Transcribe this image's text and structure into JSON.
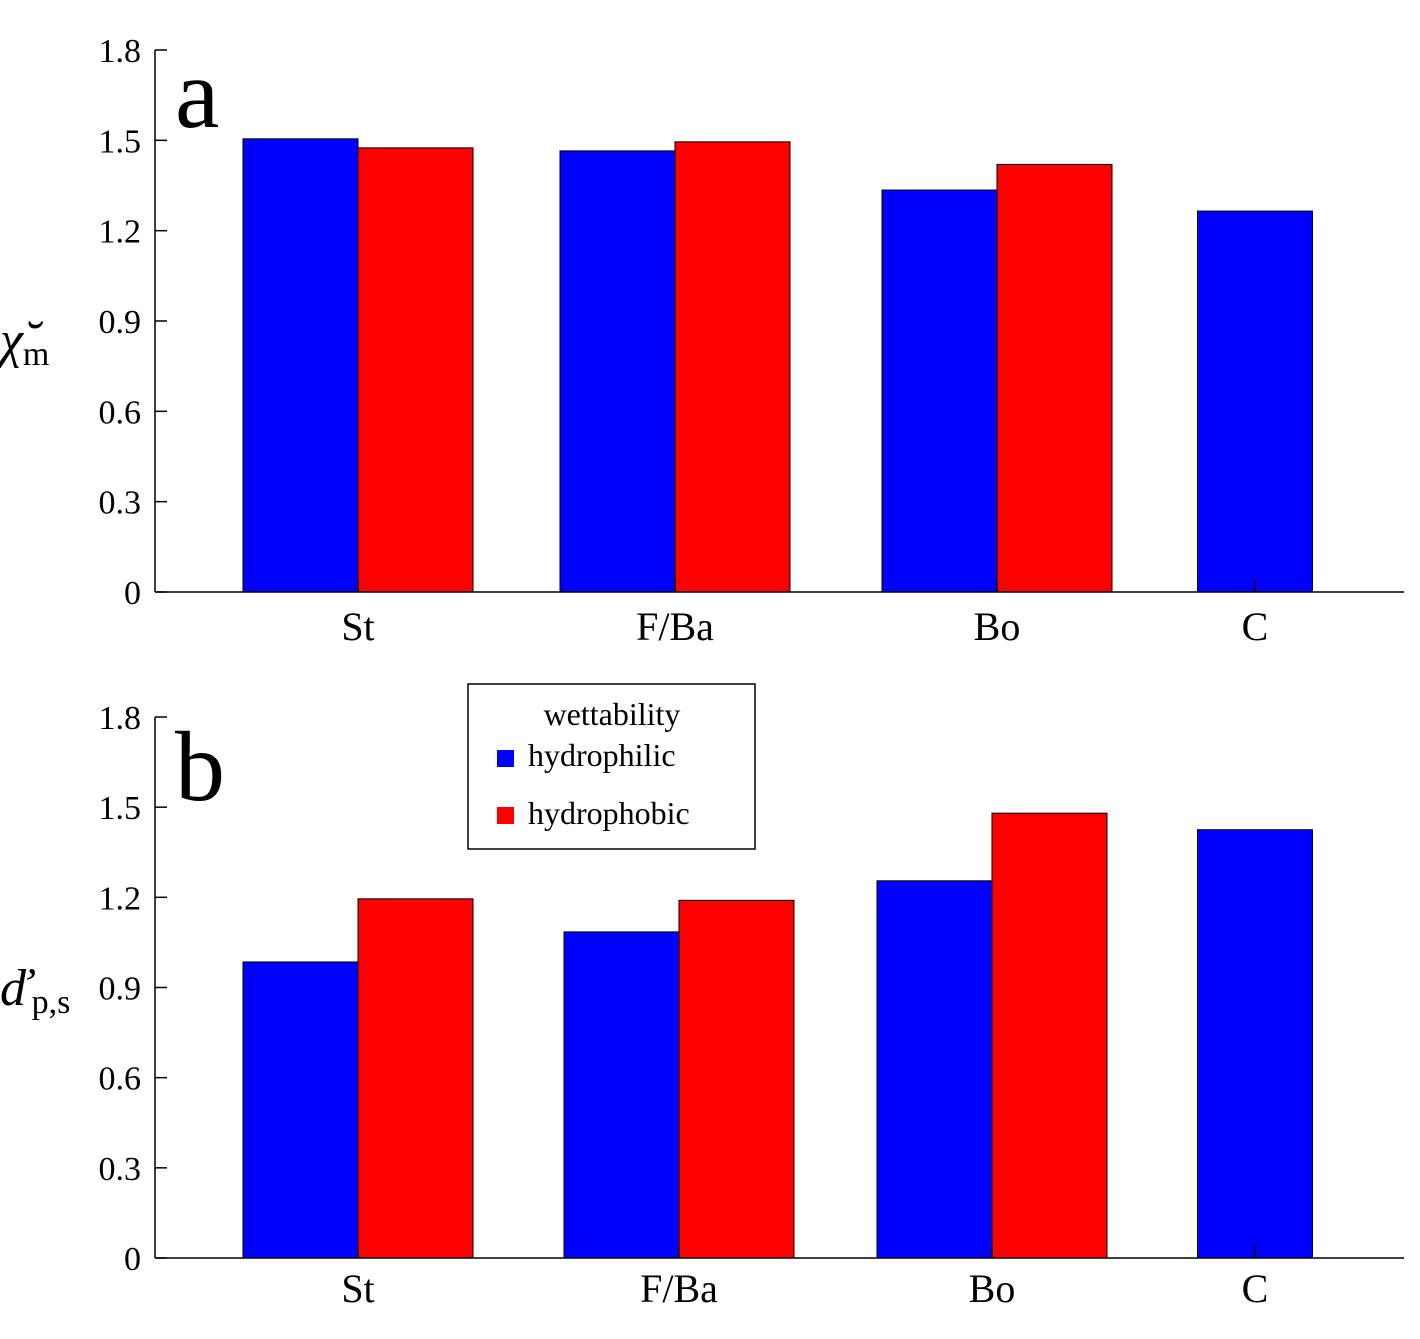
{
  "colors": {
    "hydrophilic": "#0000ff",
    "hydrophobic": "#ff0000",
    "axis": "#000000"
  },
  "chart_data": [
    {
      "type": "bar",
      "panel_label": "a",
      "ylabel_symbol": "χ̆",
      "ylabel_subscript": "m",
      "categories": [
        "St",
        "F/Ba",
        "Bo",
        "C"
      ],
      "series": [
        {
          "name": "hydrophilic",
          "values": [
            1.505,
            1.465,
            1.335,
            1.265
          ]
        },
        {
          "name": "hydrophobic",
          "values": [
            1.475,
            1.495,
            1.42,
            null
          ]
        }
      ],
      "ylim": [
        0,
        1.8
      ],
      "yticks": [
        "0",
        "0.3",
        "0.6",
        "0.9",
        "1.2",
        "1.5",
        "1.8"
      ],
      "grid": false
    },
    {
      "type": "bar",
      "panel_label": "b",
      "ylabel_symbol": "ď",
      "ylabel_subscript": "p,s",
      "categories": [
        "St",
        "F/Ba",
        "Bo",
        "C"
      ],
      "series": [
        {
          "name": "hydrophilic",
          "values": [
            0.985,
            1.085,
            1.255,
            1.425
          ]
        },
        {
          "name": "hydrophobic",
          "values": [
            1.195,
            1.19,
            1.48,
            null
          ]
        }
      ],
      "ylim": [
        0,
        1.8
      ],
      "yticks": [
        "0",
        "0.3",
        "0.6",
        "0.9",
        "1.2",
        "1.5",
        "1.8"
      ],
      "grid": false,
      "legend": {
        "title": "wettability",
        "entries": [
          "hydrophilic",
          "hydrophobic"
        ],
        "placement": "top-left"
      }
    }
  ]
}
